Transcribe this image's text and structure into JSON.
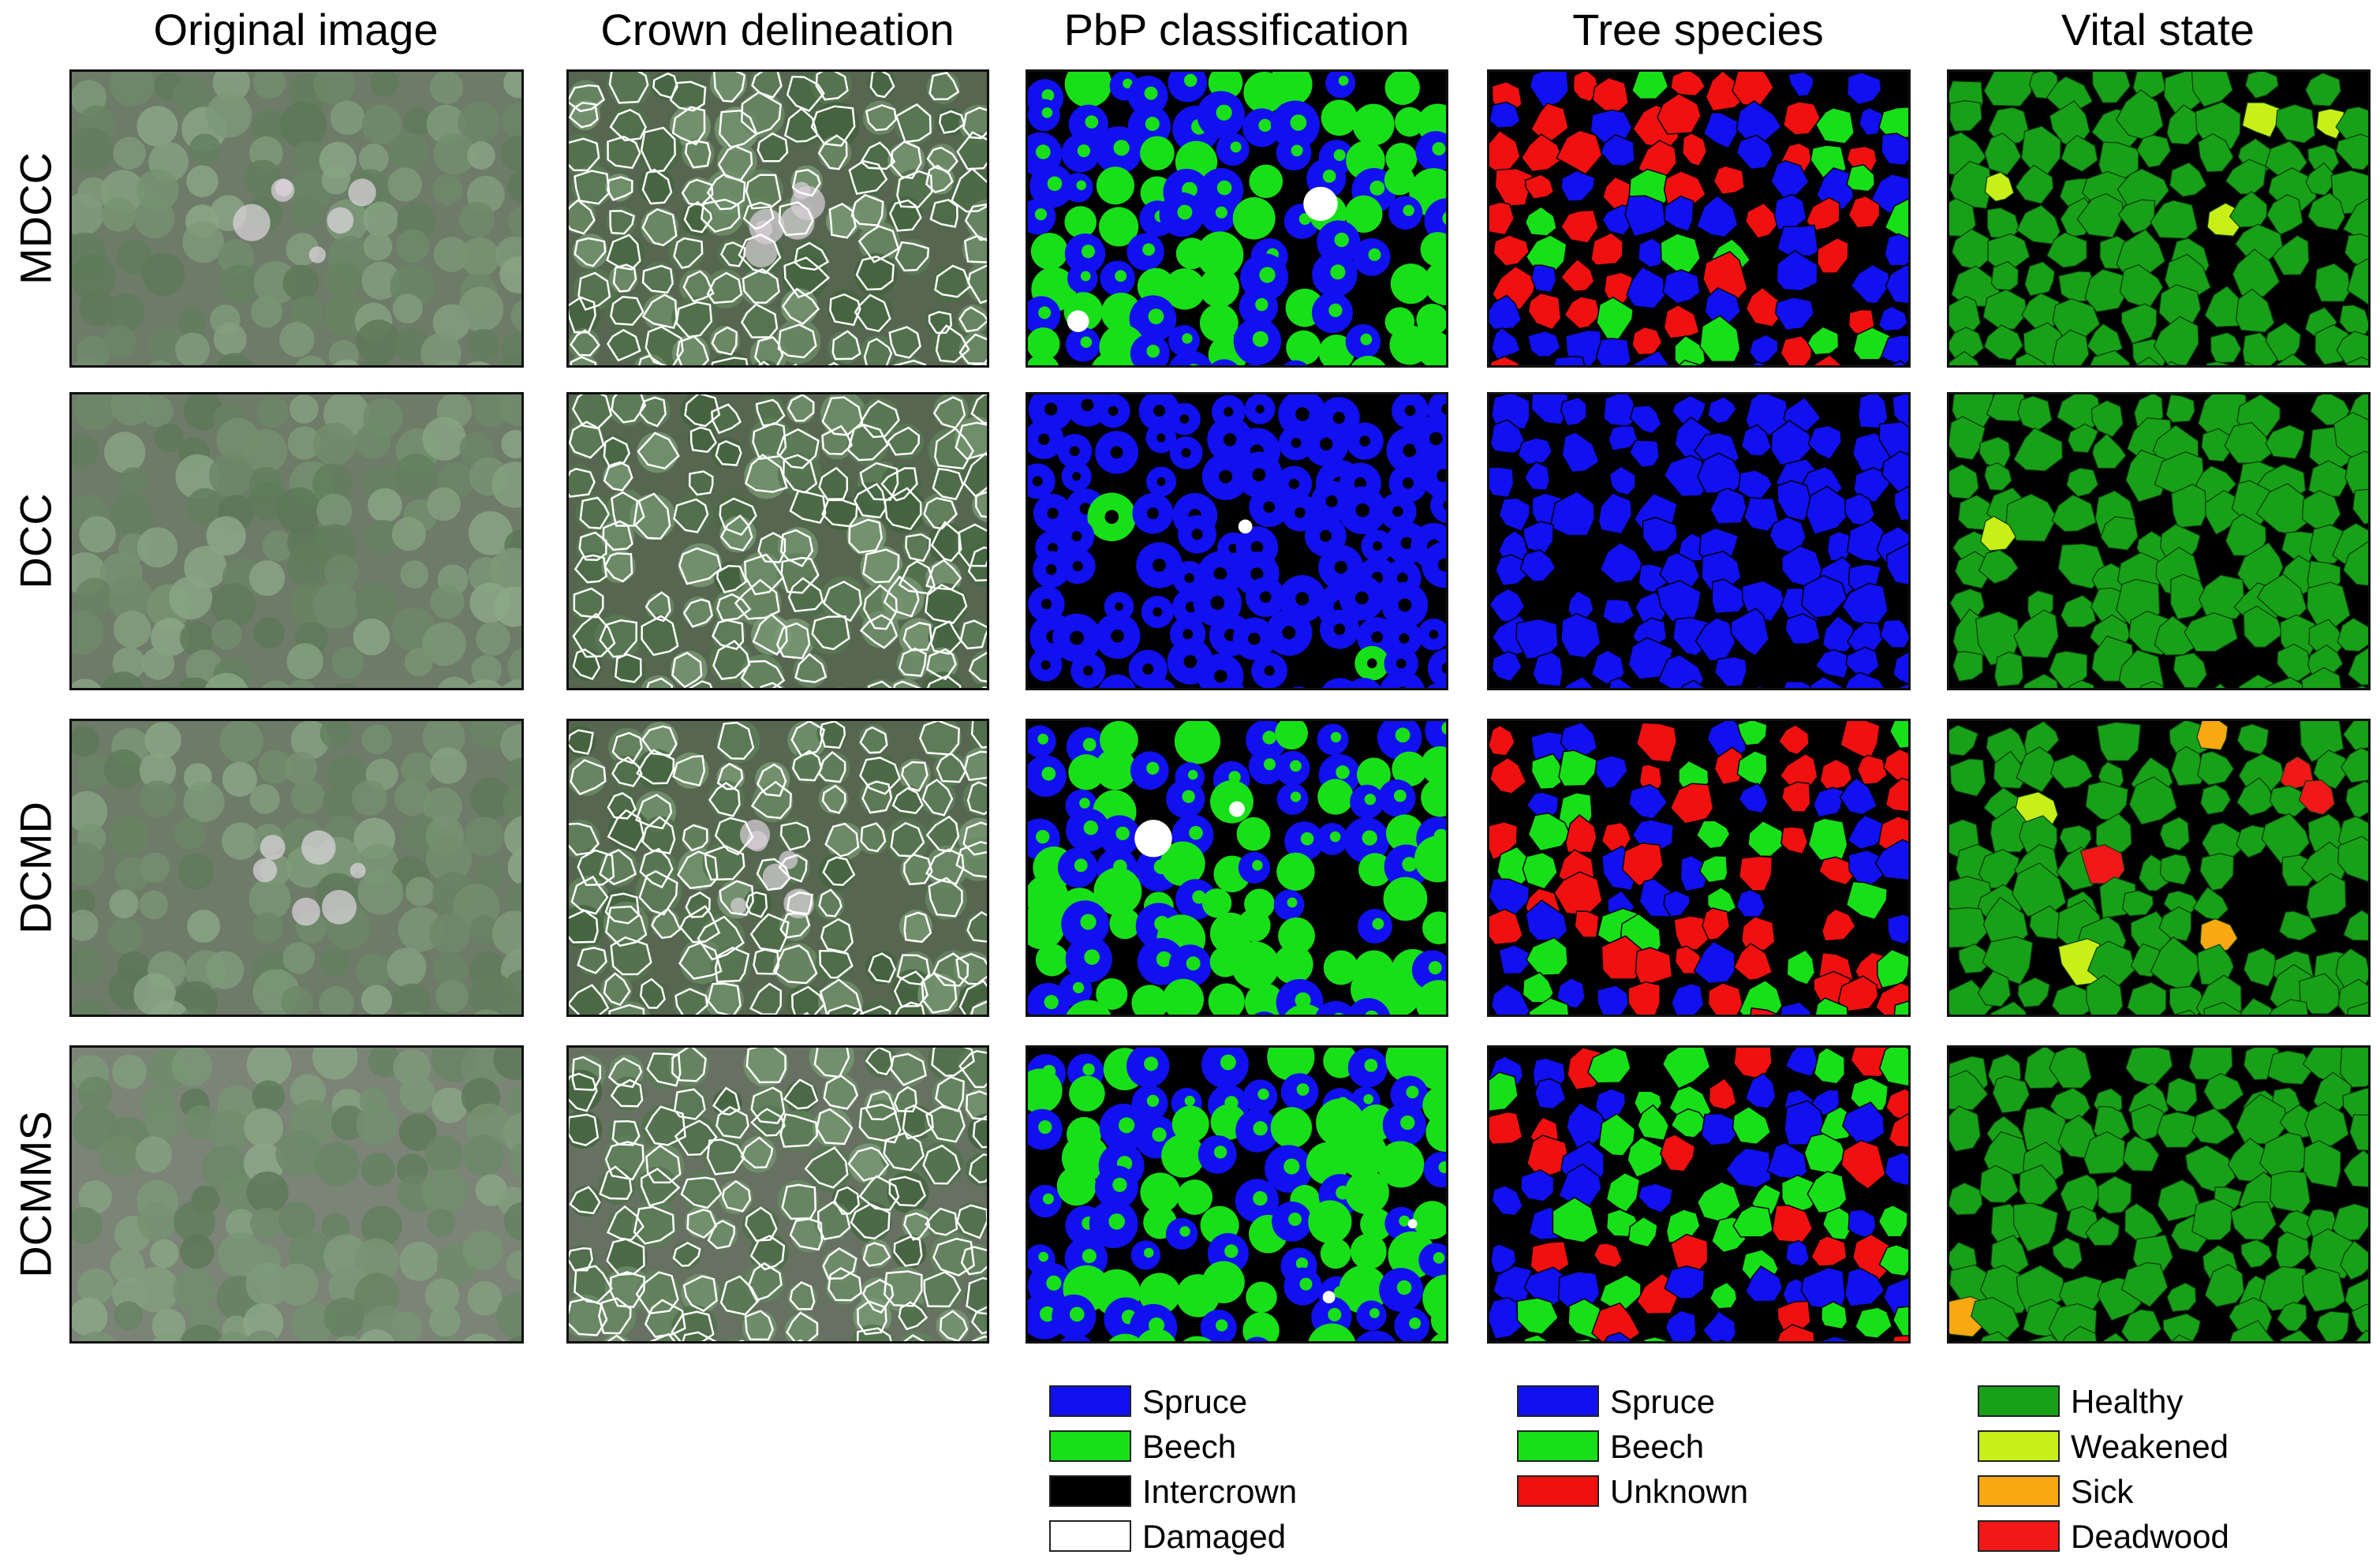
{
  "columns": [
    "Original image",
    "Crown delineation",
    "PbP classification",
    "Tree species",
    "Vital state"
  ],
  "rows": [
    "MDCC",
    "DCC",
    "DCMD",
    "DCMMS"
  ],
  "colors": {
    "spruce": "#1010f0",
    "beech": "#18e018",
    "intercrown": "#000000",
    "damaged": "#ffffff",
    "unknown": "#f01010",
    "healthy": "#18a018",
    "weakened": "#c8f018",
    "sick": "#f8a810",
    "deadwood": "#f01818",
    "crown_outline": "#ffffff"
  },
  "legends": {
    "pbp": [
      {
        "label": "Spruce",
        "color": "#1010f0"
      },
      {
        "label": "Beech",
        "color": "#18e018"
      },
      {
        "label": "Intercrown",
        "color": "#000000"
      },
      {
        "label": "Damaged",
        "color": "#ffffff"
      }
    ],
    "species": [
      {
        "label": "Spruce",
        "color": "#1010f0"
      },
      {
        "label": "Beech",
        "color": "#18e018"
      },
      {
        "label": "Unknown",
        "color": "#f01010"
      }
    ],
    "vital": [
      {
        "label": "Healthy",
        "color": "#18a018"
      },
      {
        "label": "Weakened",
        "color": "#c8f018"
      },
      {
        "label": "Sick",
        "color": "#f8a810"
      },
      {
        "label": "Deadwood",
        "color": "#f01818"
      }
    ]
  }
}
